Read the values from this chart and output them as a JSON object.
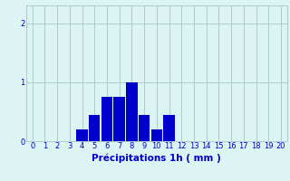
{
  "categories": [
    0,
    1,
    2,
    3,
    4,
    5,
    6,
    7,
    8,
    9,
    10,
    11,
    12,
    13,
    14,
    15,
    16,
    17,
    18,
    19,
    20
  ],
  "values": [
    0,
    0,
    0,
    0,
    0.2,
    0.45,
    0.75,
    0.75,
    1.0,
    0.45,
    0.2,
    0.45,
    0,
    0,
    0,
    0,
    0,
    0,
    0,
    0,
    0
  ],
  "bar_color": "#0000cc",
  "background_color": "#ddf4f4",
  "grid_color": "#aacccc",
  "xlabel": "Précipitations 1h ( mm )",
  "xlabel_color": "#0000cc",
  "xlabel_fontsize": 7.5,
  "tick_color": "#0000cc",
  "tick_fontsize": 6,
  "yticks": [
    0,
    1,
    2
  ],
  "ylim": [
    0,
    2.3
  ],
  "xlim": [
    -0.5,
    20.5
  ]
}
